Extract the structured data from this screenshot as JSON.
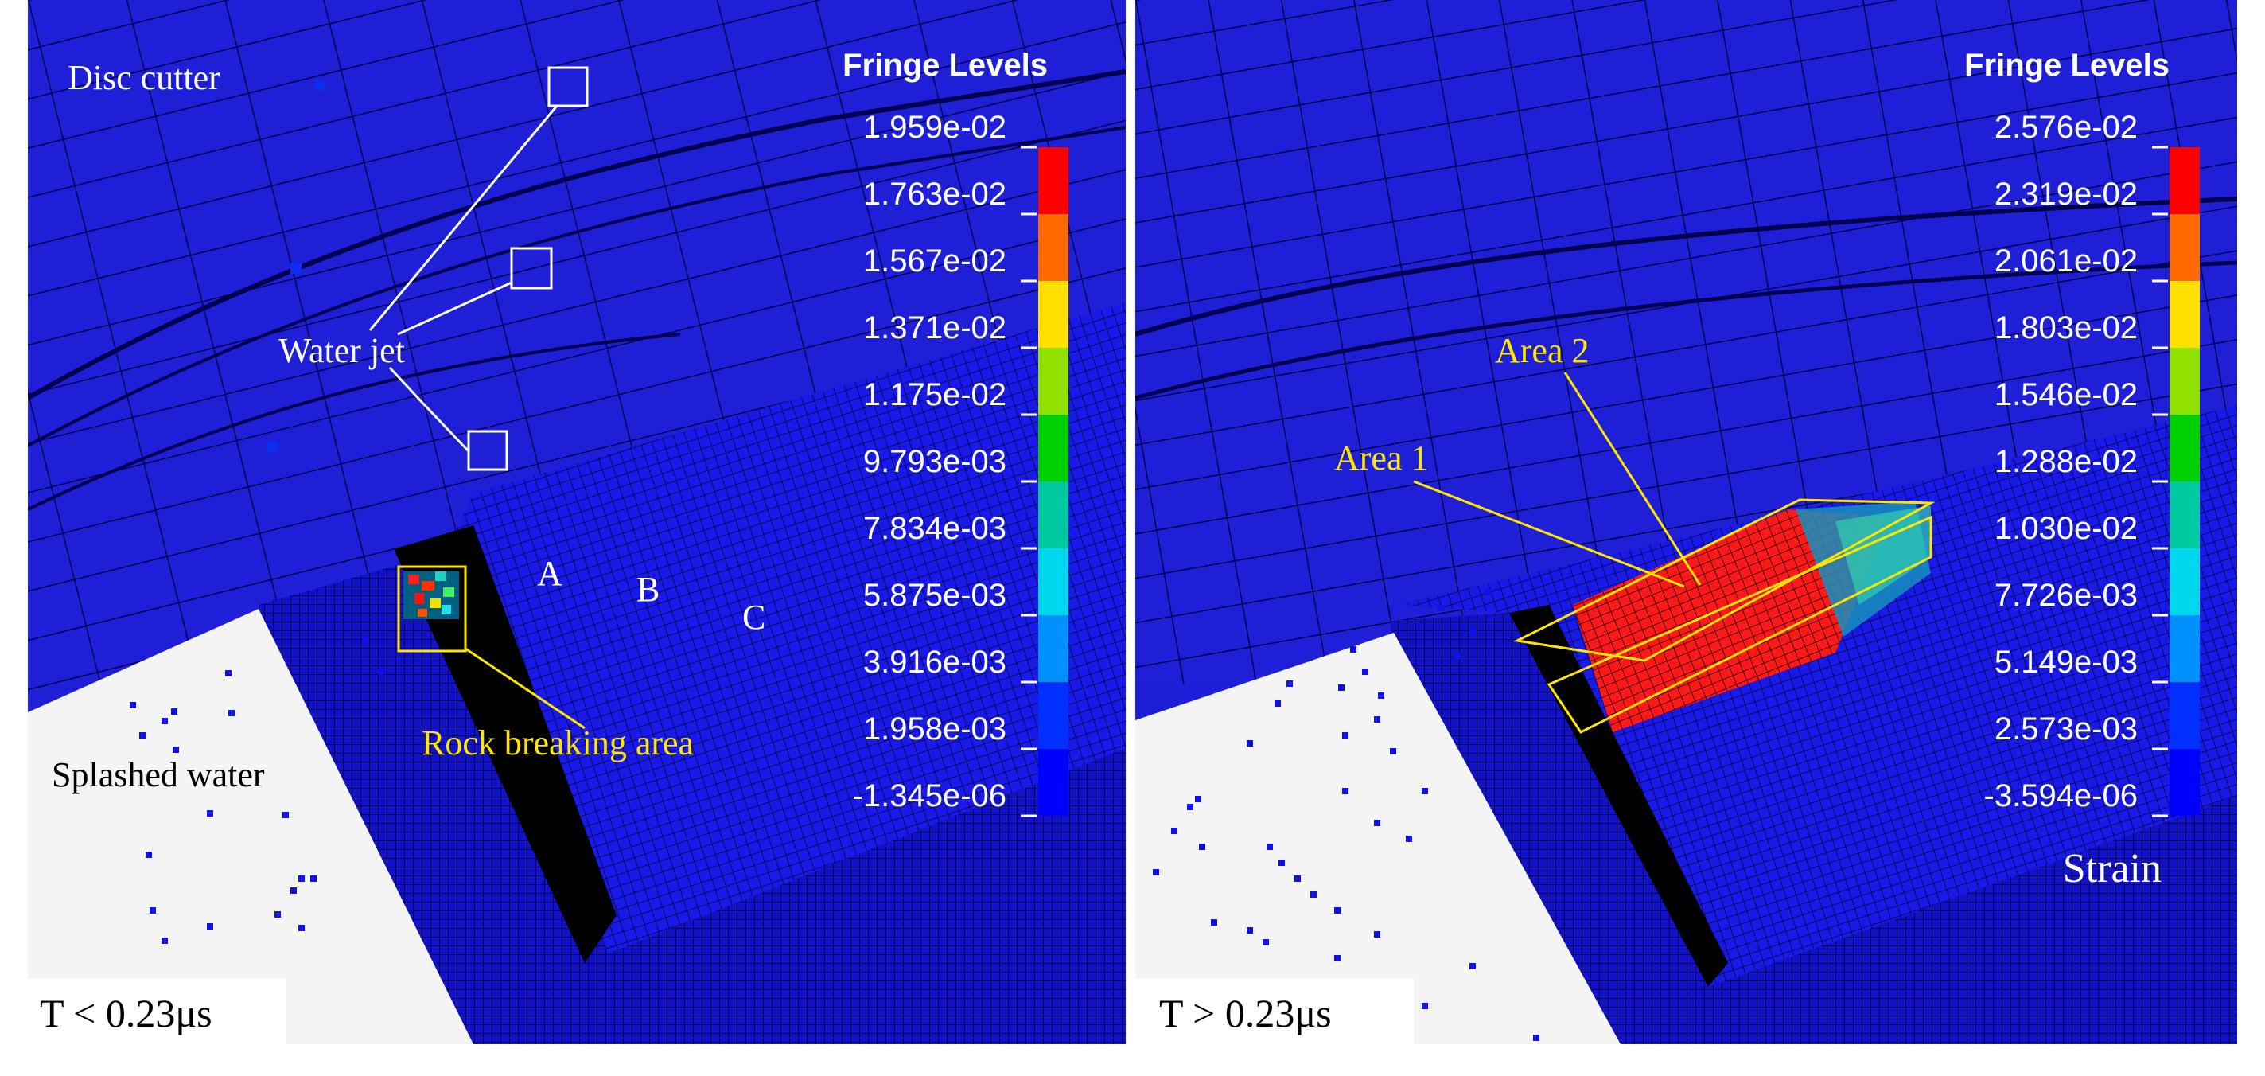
{
  "panels": [
    {
      "time_label": "T < 0.23μs",
      "fringe_title": "Fringe Levels",
      "fringe_values": [
        "1.959e-02",
        "1.763e-02",
        "1.567e-02",
        "1.371e-02",
        "1.175e-02",
        "9.793e-03",
        "7.834e-03",
        "5.875e-03",
        "3.916e-03",
        "1.958e-03",
        "-1.345e-06"
      ],
      "labels": {
        "disc_cutter": "Disc cutter",
        "water_jet": "Water jet",
        "splashed_water": "Splashed water",
        "rock_breaking_area": "Rock breaking area",
        "point_a": "A",
        "point_b": "B",
        "point_c": "C"
      }
    },
    {
      "time_label": "T > 0.23μs",
      "fringe_title": "Fringe Levels",
      "fringe_values": [
        "2.576e-02",
        "2.319e-02",
        "2.061e-02",
        "1.803e-02",
        "1.546e-02",
        "1.288e-02",
        "1.030e-02",
        "7.726e-03",
        "5.149e-03",
        "2.573e-03",
        "-3.594e-06"
      ],
      "labels": {
        "area_1": "Area 1",
        "area_2": "Area 2",
        "strain": "Strain"
      }
    }
  ],
  "colors": {
    "mesh_blue": "#1e1ee0",
    "mesh_line": "#00004a",
    "water_background": "#f4f4f4",
    "annotation_white": "#ffffff",
    "annotation_yellow": "#ffe600",
    "legend_scale": [
      "#ff0000",
      "#ff6a00",
      "#ffe000",
      "#90e000",
      "#00d000",
      "#00c8a0",
      "#00d8f0",
      "#0090ff",
      "#0030ff",
      "#0000ff"
    ]
  }
}
